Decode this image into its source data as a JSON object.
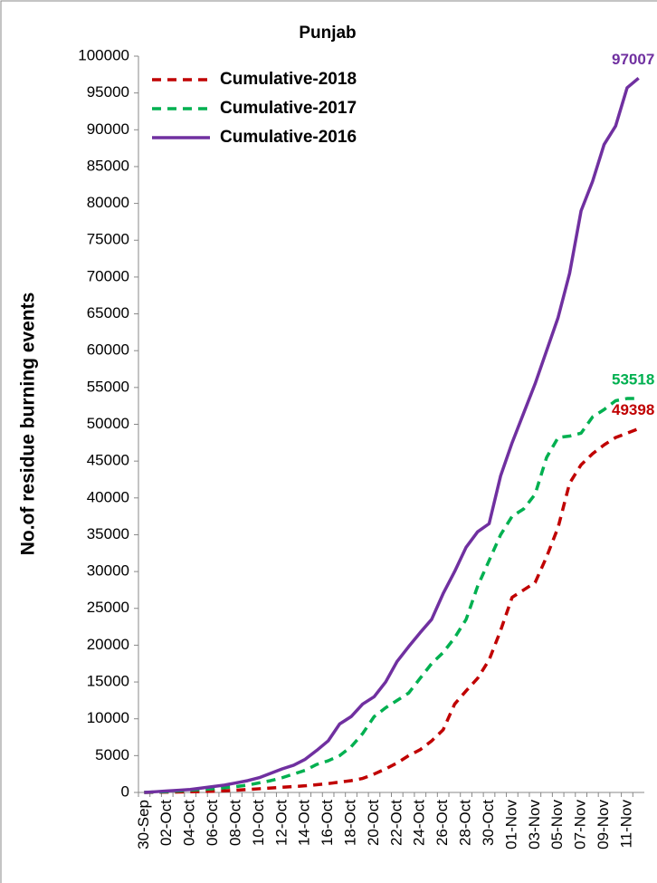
{
  "chart_data": {
    "type": "line",
    "title": "Punjab",
    "y_label": "No.of residue burning events",
    "categories": [
      "30-Sep",
      null,
      "02-Oct",
      null,
      "04-Oct",
      null,
      "06-Oct",
      null,
      "08-Oct",
      null,
      "10-Oct",
      null,
      "12-Oct",
      null,
      "14-Oct",
      null,
      "16-Oct",
      null,
      "18-Oct",
      null,
      "20-Oct",
      null,
      "22-Oct",
      null,
      "24-Oct",
      null,
      "26-Oct",
      null,
      "28-Oct",
      null,
      "30-Oct",
      null,
      "01-Nov",
      null,
      "03-Nov",
      null,
      "05-Nov",
      null,
      "07-Nov",
      null,
      "09-Nov",
      null,
      "11-Nov",
      null
    ],
    "series": [
      {
        "name": "Cumulative-2018",
        "color": "#c00000",
        "dash": true,
        "values": [
          0,
          20,
          40,
          60,
          90,
          120,
          160,
          220,
          300,
          400,
          500,
          600,
          700,
          800,
          900,
          1050,
          1200,
          1400,
          1600,
          1900,
          2500,
          3200,
          4000,
          5000,
          5800,
          7000,
          8500,
          12000,
          13800,
          15500,
          18000,
          22000,
          26500,
          27500,
          28500,
          32000,
          36000,
          42000,
          44500,
          46000,
          47200,
          48200,
          48800,
          49398
        ]
      },
      {
        "name": "Cumulative-2017",
        "color": "#00b050",
        "dash": true,
        "values": [
          0,
          50,
          100,
          200,
          300,
          400,
          500,
          650,
          800,
          1000,
          1300,
          1600,
          2000,
          2500,
          3000,
          3800,
          4300,
          5000,
          6200,
          8000,
          10300,
          11500,
          12500,
          13500,
          15500,
          17500,
          19000,
          21000,
          23500,
          28000,
          31500,
          35000,
          37500,
          38500,
          40500,
          45500,
          48200,
          48400,
          48800,
          51000,
          52000,
          53200,
          53500,
          53518
        ]
      },
      {
        "name": "Cumulative-2016",
        "color": "#7030a0",
        "dash": false,
        "values": [
          0,
          100,
          200,
          300,
          400,
          600,
          800,
          1000,
          1300,
          1600,
          2000,
          2600,
          3200,
          3700,
          4500,
          5700,
          7000,
          9300,
          10300,
          12000,
          13000,
          15000,
          17800,
          19800,
          21700,
          23500,
          27000,
          30000,
          33300,
          35400,
          36500,
          43000,
          47500,
          51500,
          55500,
          60000,
          64500,
          70500,
          79000,
          83000,
          88000,
          90500,
          95700,
          97007
        ]
      }
    ],
    "ylim": [
      0,
      100000
    ],
    "yticks": [
      0,
      5000,
      10000,
      15000,
      20000,
      25000,
      30000,
      35000,
      40000,
      45000,
      50000,
      55000,
      60000,
      65000,
      70000,
      75000,
      80000,
      85000,
      90000,
      95000,
      100000
    ],
    "grid": false,
    "legend": "upper left"
  }
}
